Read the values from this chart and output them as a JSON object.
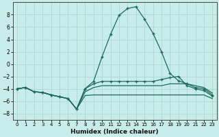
{
  "xlabel": "Humidex (Indice chaleur)",
  "x_ticks": [
    0,
    1,
    2,
    3,
    4,
    5,
    6,
    7,
    8,
    9,
    10,
    11,
    12,
    13,
    14,
    15,
    16,
    17,
    18,
    19,
    20,
    21,
    22,
    23
  ],
  "ylim": [
    -9,
    10
  ],
  "xlim": [
    -0.5,
    23.5
  ],
  "yticks": [
    -8,
    -6,
    -4,
    -2,
    0,
    2,
    4,
    6,
    8
  ],
  "background_color": "#c8ecea",
  "grid_color": "#a8d8d0",
  "line_color": "#1a6b5a",
  "line1_y": [
    -4.0,
    -3.8,
    -4.5,
    -4.6,
    -5.0,
    -5.3,
    -5.6,
    -7.3,
    -4.0,
    -2.8,
    1.2,
    4.8,
    7.9,
    9.0,
    9.3,
    7.3,
    5.0,
    2.0,
    -1.5,
    -2.7,
    -3.2,
    -3.8,
    -4.0,
    -5.0
  ],
  "line2_y": [
    -4.0,
    -3.8,
    -4.5,
    -4.6,
    -5.0,
    -5.3,
    -5.6,
    -7.3,
    -5.1,
    -5.0,
    -5.0,
    -5.0,
    -5.0,
    -5.0,
    -5.0,
    -5.0,
    -5.0,
    -5.0,
    -5.0,
    -5.0,
    -5.0,
    -5.0,
    -5.0,
    -5.6
  ],
  "line3_y": [
    -4.0,
    -3.8,
    -4.5,
    -4.6,
    -5.0,
    -5.3,
    -5.6,
    -7.3,
    -4.5,
    -3.8,
    -3.5,
    -3.5,
    -3.5,
    -3.5,
    -3.5,
    -3.5,
    -3.5,
    -3.5,
    -3.2,
    -3.2,
    -3.2,
    -3.5,
    -3.8,
    -4.7
  ],
  "line4_y": [
    -4.0,
    -3.8,
    -4.5,
    -4.6,
    -5.0,
    -5.3,
    -5.6,
    -7.3,
    -4.0,
    -3.2,
    -2.8,
    -2.8,
    -2.8,
    -2.8,
    -2.8,
    -2.8,
    -2.8,
    -2.5,
    -2.2,
    -2.0,
    -3.5,
    -4.0,
    -4.3,
    -5.2
  ],
  "xlabel_fontsize": 6.5,
  "xlabel_fontweight": "bold",
  "tick_fontsize": 5.5,
  "ytick_fontsize": 5.5
}
